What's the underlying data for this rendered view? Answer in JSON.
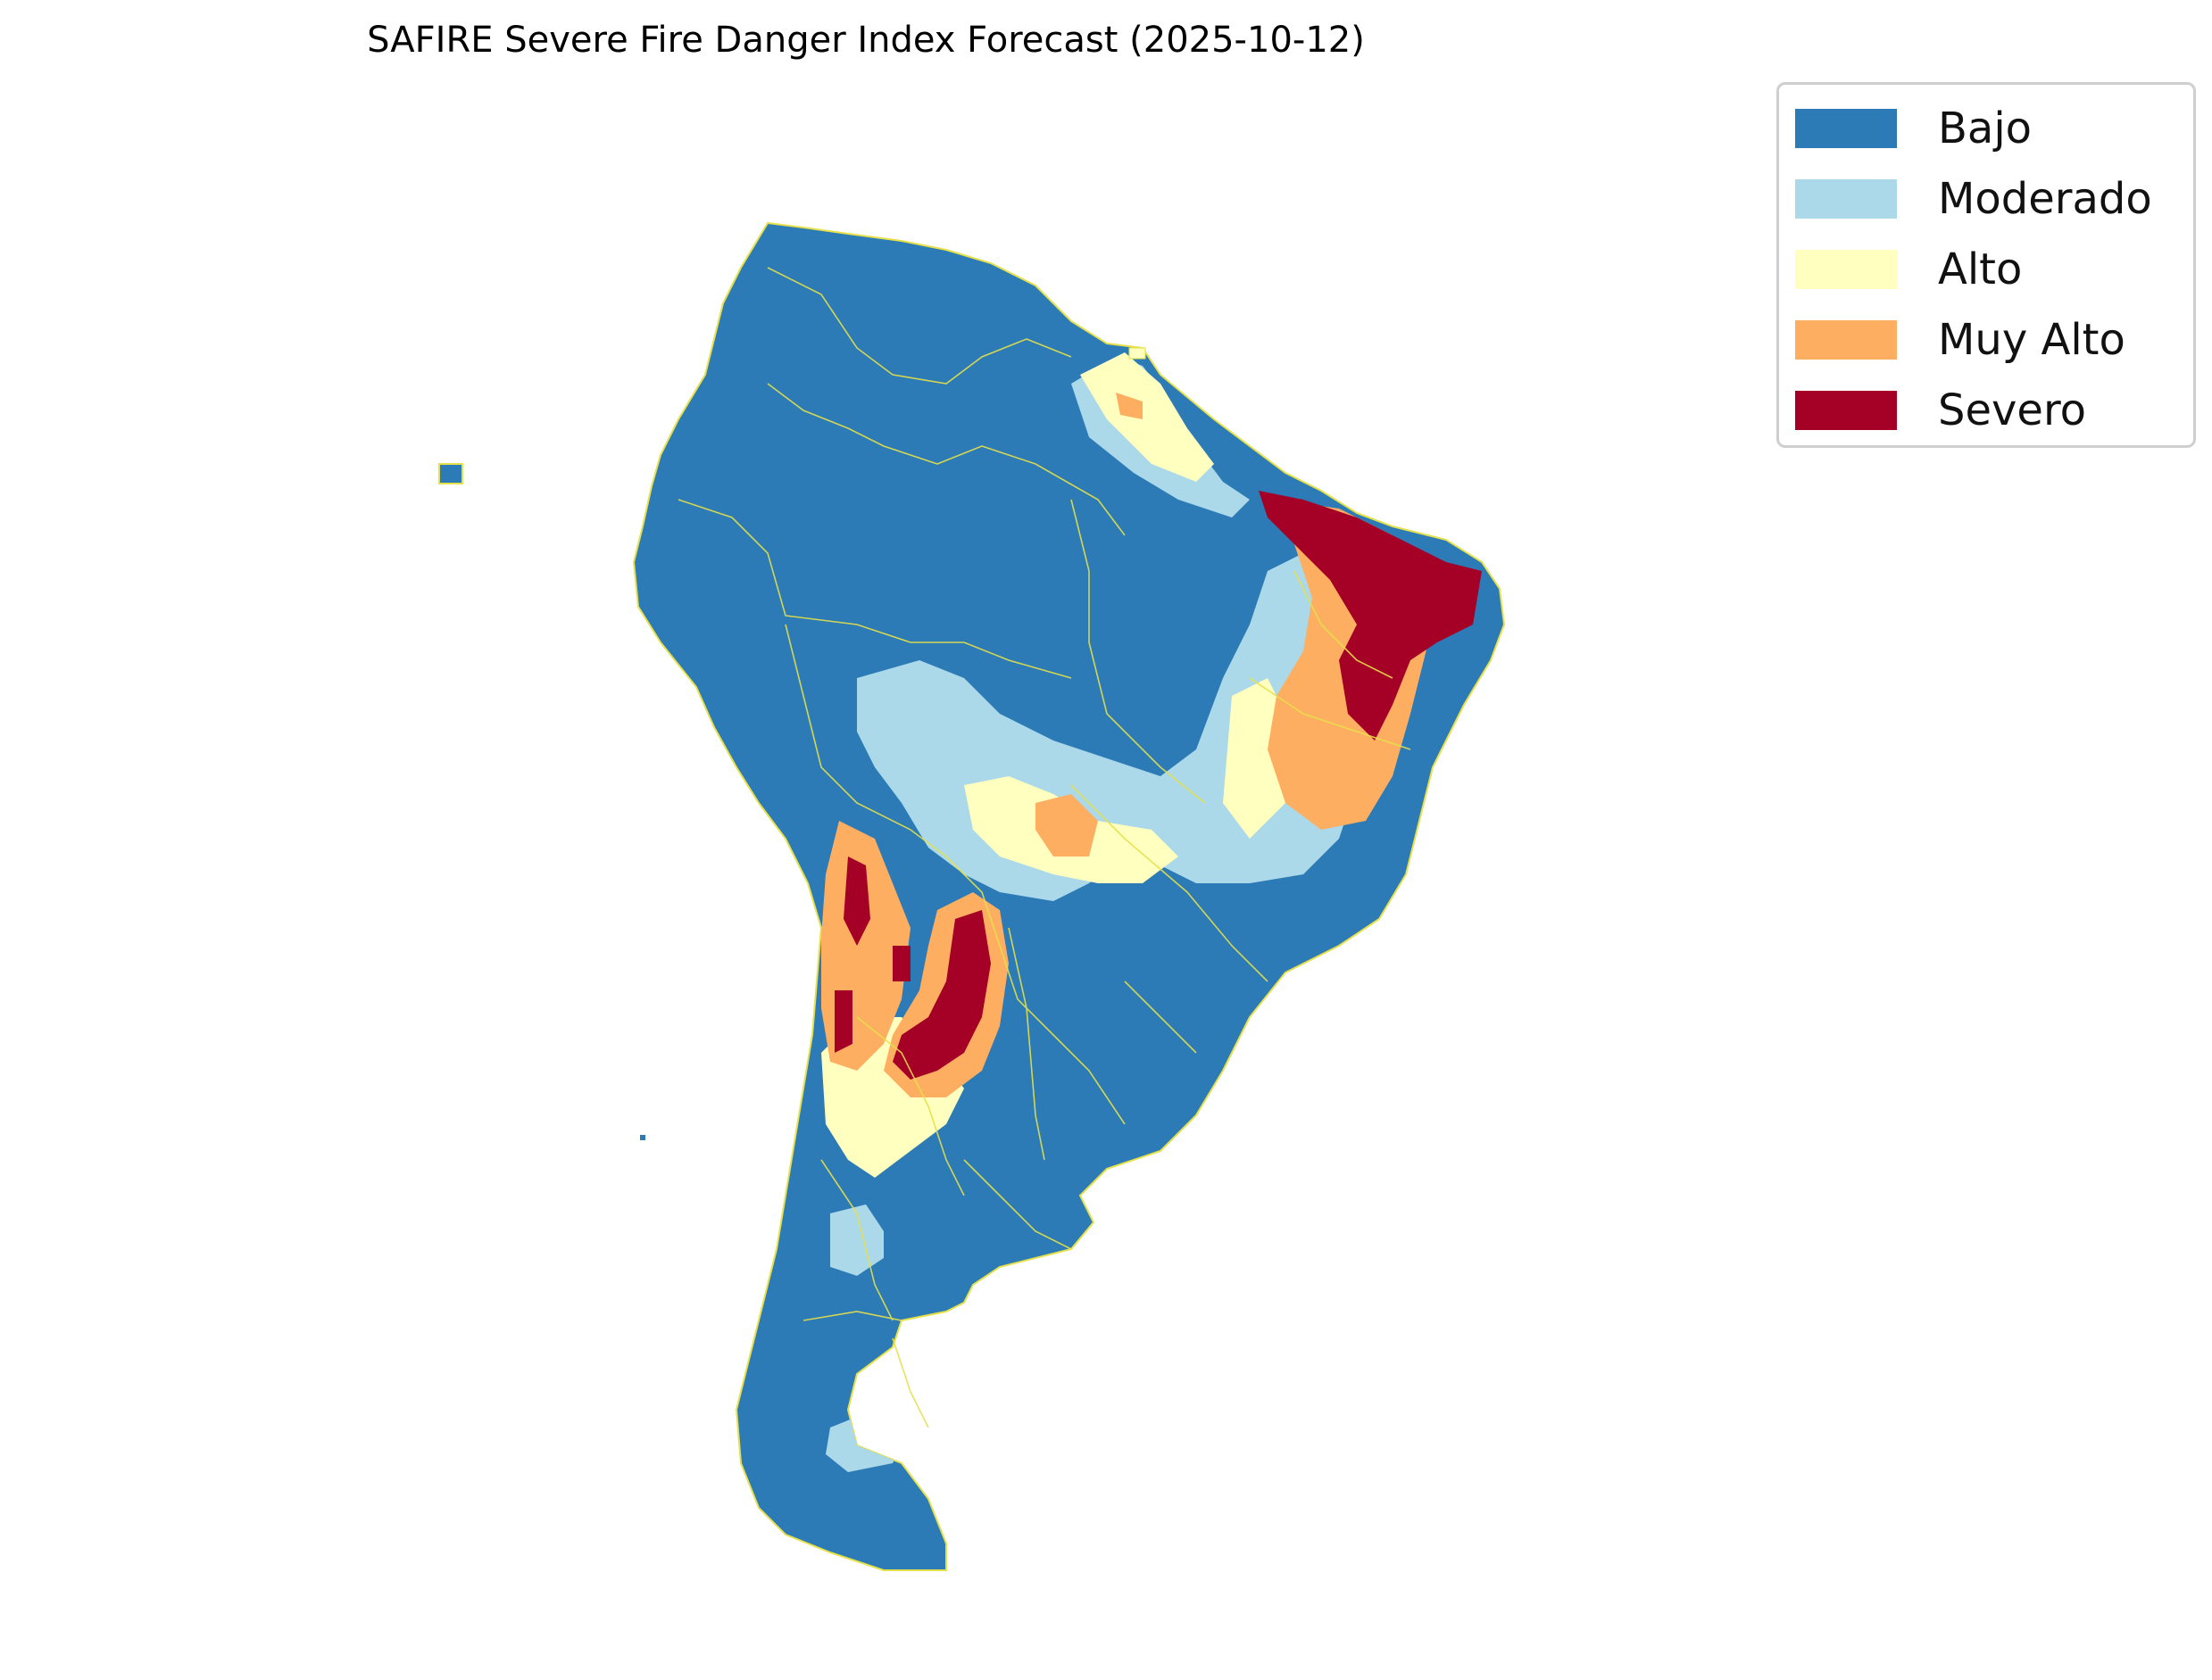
{
  "title": "SAFIRE Severe Fire Danger Index Forecast (2025-10-12)",
  "legend": {
    "items": [
      {
        "label": "Bajo",
        "color": "#2c7bb6"
      },
      {
        "label": "Moderado",
        "color": "#abd9e9"
      },
      {
        "label": "Alto",
        "color": "#ffffbf"
      },
      {
        "label": "Muy Alto",
        "color": "#fdae61"
      },
      {
        "label": "Severo",
        "color": "#a50026"
      }
    ]
  },
  "colors": {
    "border_lines": "#e6e04a"
  }
}
